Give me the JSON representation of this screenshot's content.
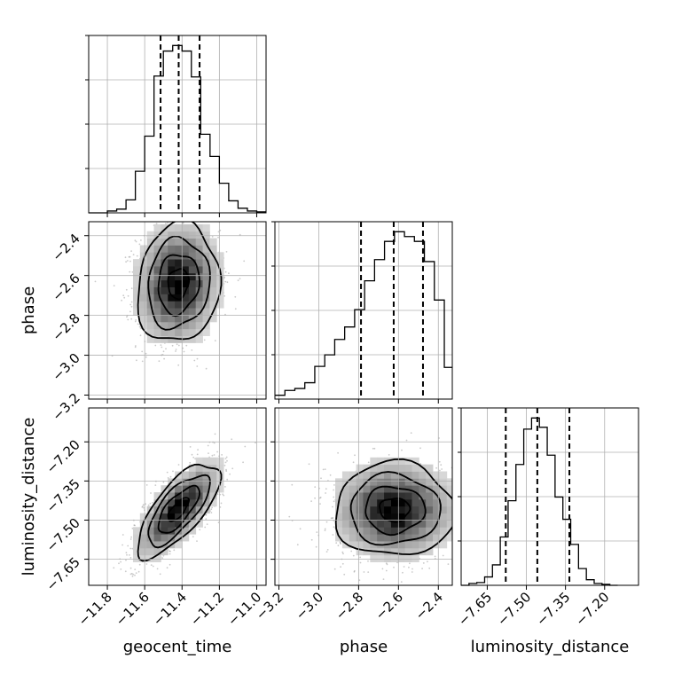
{
  "chart_data": {
    "type": "corner",
    "parameters": [
      "geocent_time",
      "phase",
      "luminosity_distance"
    ],
    "grid": true,
    "quantile_lines": "dashed",
    "ranges": {
      "geocent_time": [
        -11.9,
        -10.95
      ],
      "phase": [
        -3.22,
        -2.33
      ],
      "luminosity_distance": [
        -7.75,
        -7.07
      ]
    },
    "ticks": {
      "geocent_time": [
        "−11.8",
        "−11.6",
        "−11.4",
        "−11.2",
        "−11.0"
      ],
      "phase": [
        "−3.2",
        "−3.0",
        "−2.8",
        "−2.6",
        "−2.4"
      ],
      "luminosity_distance": [
        "−7.65",
        "−7.50",
        "−7.35",
        "−7.20"
      ]
    },
    "tick_values": {
      "geocent_time": [
        -11.8,
        -11.6,
        -11.4,
        -11.2,
        -11.0
      ],
      "phase": [
        -3.2,
        -3.0,
        -2.8,
        -2.6,
        -2.4
      ],
      "luminosity_distance": [
        -7.65,
        -7.5,
        -7.35,
        -7.2
      ]
    },
    "histograms": {
      "geocent_time": {
        "bin_edges": [
          -11.9,
          -11.85,
          -11.8,
          -11.75,
          -11.7,
          -11.65,
          -11.6,
          -11.55,
          -11.5,
          -11.45,
          -11.4,
          -11.35,
          -11.3,
          -11.25,
          -11.2,
          -11.15,
          -11.1,
          -11.05,
          -11.0,
          -10.95
        ],
        "counts": [
          0,
          0,
          2,
          4,
          14,
          45,
          83,
          148,
          175,
          181,
          175,
          147,
          85,
          61,
          32,
          13,
          5,
          2,
          1
        ],
        "quantiles": [
          -11.515,
          -11.418,
          -11.306
        ]
      },
      "phase": {
        "bin_edges": [
          -3.22,
          -3.17,
          -3.12,
          -3.07,
          -3.02,
          -2.97,
          -2.92,
          -2.87,
          -2.82,
          -2.77,
          -2.72,
          -2.67,
          -2.62,
          -2.57,
          -2.52,
          -2.47,
          -2.42,
          -2.37,
          -2.33
        ],
        "counts": [
          4,
          9,
          11,
          17,
          34,
          46,
          62,
          75,
          93,
          123,
          145,
          164,
          174,
          169,
          164,
          143,
          103,
          33
        ],
        "quantiles": [
          -2.788,
          -2.624,
          -2.477
        ]
      },
      "luminosity_distance": {
        "bin_edges": [
          -7.75,
          -7.72,
          -7.69,
          -7.66,
          -7.63,
          -7.6,
          -7.57,
          -7.54,
          -7.51,
          -7.48,
          -7.45,
          -7.42,
          -7.39,
          -7.36,
          -7.33,
          -7.3,
          -7.27,
          -7.24,
          -7.21,
          -7.18,
          -7.15
        ],
        "counts": [
          0,
          2,
          3,
          9,
          22,
          52,
          91,
          130,
          168,
          180,
          170,
          140,
          95,
          71,
          44,
          18,
          6,
          2,
          1,
          0
        ],
        "quantiles": [
          -7.579,
          -7.458,
          -7.335
        ]
      }
    },
    "joint": [
      {
        "x": "geocent_time",
        "y": "phase",
        "x_mean": -11.42,
        "y_mean": -2.64,
        "x_std": 0.11,
        "y_std": 0.15,
        "correlation": 0.1
      },
      {
        "x": "geocent_time",
        "y": "luminosity_distance",
        "x_mean": -11.42,
        "y_mean": -7.46,
        "x_std": 0.11,
        "y_std": 0.09,
        "correlation": 0.72
      },
      {
        "x": "phase",
        "y": "luminosity_distance",
        "x_mean": -2.62,
        "y_mean": -7.46,
        "x_std": 0.15,
        "y_std": 0.09,
        "correlation": 0.0
      }
    ]
  }
}
